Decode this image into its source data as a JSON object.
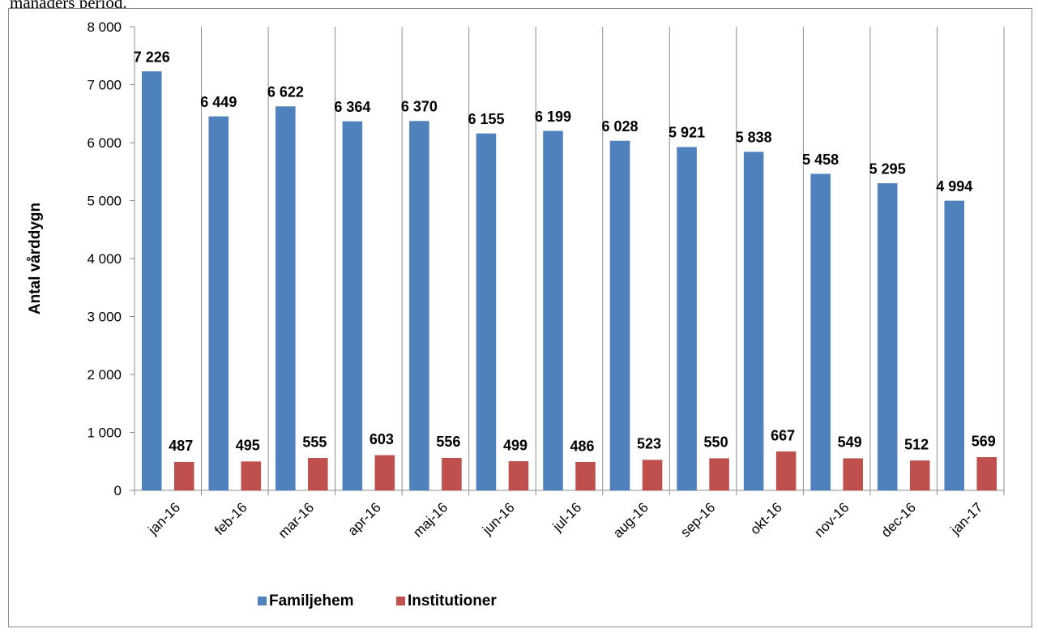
{
  "caption_fragment": "månaders period.",
  "chart_data": {
    "type": "bar",
    "categories": [
      "jan-16",
      "feb-16",
      "mar-16",
      "apr-16",
      "maj-16",
      "jun-16",
      "jul-16",
      "aug-16",
      "sep-16",
      "okt-16",
      "nov-16",
      "dec-16",
      "jan-17"
    ],
    "series": [
      {
        "name": "Familjehem",
        "color": "#4f81bd",
        "values": [
          7226,
          6449,
          6622,
          6364,
          6370,
          6155,
          6199,
          6028,
          5921,
          5838,
          5458,
          5295,
          4994
        ],
        "labels": [
          "7 226",
          "6 449",
          "6 622",
          "6 364",
          "6 370",
          "6 155",
          "6 199",
          "6 028",
          "5 921",
          "5 838",
          "5 458",
          "5 295",
          "4 994"
        ]
      },
      {
        "name": "Institutioner",
        "color": "#c0504d",
        "values": [
          487,
          495,
          555,
          603,
          556,
          499,
          486,
          523,
          550,
          667,
          549,
          512,
          569
        ],
        "labels": [
          "487",
          "495",
          "555",
          "603",
          "556",
          "499",
          "486",
          "523",
          "550",
          "667",
          "549",
          "512",
          "569"
        ]
      }
    ],
    "title": "",
    "xlabel": "",
    "ylabel": "Antal vårddygn",
    "ylim": [
      0,
      8000
    ],
    "yticks": [
      0,
      1000,
      2000,
      3000,
      4000,
      5000,
      6000,
      7000,
      8000
    ],
    "ytick_labels": [
      "0",
      "1 000",
      "2 000",
      "3 000",
      "4 000",
      "5 000",
      "6 000",
      "7 000",
      "8 000"
    ],
    "grid": "vertical category separators",
    "legend": "bottom"
  }
}
